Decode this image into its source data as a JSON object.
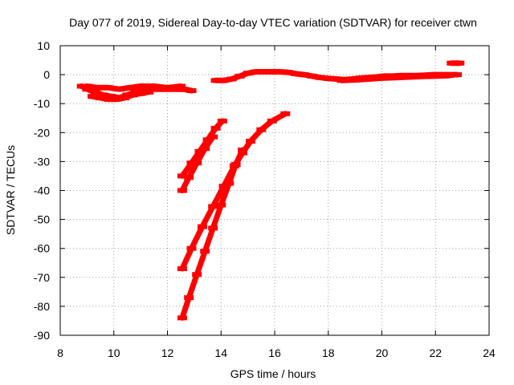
{
  "chart_data": {
    "type": "scatter",
    "title": "Day 077 of 2019, Sidereal Day-to-day VTEC variation (SDTVAR) for receiver ctwn",
    "xlabel": "GPS time / hours",
    "ylabel": "SDTVAR / TECUs",
    "xlim": [
      8,
      24
    ],
    "ylim": [
      -90,
      10
    ],
    "xticks": [
      8,
      10,
      12,
      14,
      16,
      18,
      20,
      22,
      24
    ],
    "yticks": [
      10,
      0,
      -10,
      -20,
      -30,
      -40,
      -50,
      -60,
      -70,
      -80,
      -90
    ],
    "grid": true,
    "legend": "none",
    "series_color": "#ff0000",
    "series": [
      {
        "points": [
          [
            8.8,
            -4
          ],
          [
            9.0,
            -5
          ],
          [
            9.3,
            -6
          ],
          [
            9.6,
            -7
          ],
          [
            9.9,
            -7.5
          ],
          [
            10.2,
            -8
          ],
          [
            10.5,
            -7
          ],
          [
            10.8,
            -6
          ],
          [
            11.1,
            -5.5
          ],
          [
            11.4,
            -5
          ],
          [
            11.7,
            -5
          ],
          [
            12.0,
            -5
          ],
          [
            12.3,
            -5
          ],
          [
            12.6,
            -5
          ],
          [
            12.9,
            -5.5
          ]
        ]
      },
      {
        "points": [
          [
            9.2,
            -7.5
          ],
          [
            9.5,
            -8
          ],
          [
            9.8,
            -8.5
          ],
          [
            10.1,
            -8.5
          ],
          [
            10.4,
            -8
          ],
          [
            10.7,
            -7
          ],
          [
            11.0,
            -6.5
          ],
          [
            11.3,
            -6
          ]
        ]
      },
      {
        "points": [
          [
            9.0,
            -4
          ],
          [
            9.4,
            -4.5
          ],
          [
            9.8,
            -4.5
          ],
          [
            10.2,
            -5
          ],
          [
            10.6,
            -4.5
          ],
          [
            11.0,
            -4
          ],
          [
            11.5,
            -4
          ],
          [
            12.0,
            -4.5
          ],
          [
            12.5,
            -4
          ]
        ]
      },
      {
        "points": [
          [
            13.8,
            -2
          ],
          [
            14.1,
            -2
          ],
          [
            14.4,
            -1.5
          ],
          [
            14.7,
            -0.5
          ],
          [
            15.0,
            0.5
          ],
          [
            15.3,
            1
          ],
          [
            15.6,
            1
          ],
          [
            15.9,
            1
          ],
          [
            16.2,
            1
          ],
          [
            16.5,
            0.8
          ],
          [
            16.8,
            0.3
          ],
          [
            17.1,
            0
          ],
          [
            17.4,
            -0.5
          ],
          [
            17.7,
            -1
          ],
          [
            18.0,
            -1.3
          ],
          [
            18.3,
            -1.5
          ],
          [
            18.6,
            -1.7
          ],
          [
            18.9,
            -1.5
          ],
          [
            19.2,
            -1.2
          ],
          [
            19.5,
            -1
          ],
          [
            19.8,
            -0.8
          ],
          [
            20.1,
            -0.5
          ],
          [
            20.4,
            -0.5
          ],
          [
            20.7,
            -0.3
          ],
          [
            21.0,
            -0.3
          ],
          [
            21.3,
            -0.3
          ],
          [
            21.6,
            -0.2
          ],
          [
            21.9,
            0
          ],
          [
            22.2,
            0
          ],
          [
            22.5,
            0
          ],
          [
            22.8,
            0
          ]
        ]
      },
      {
        "points": [
          [
            18.5,
            -2
          ],
          [
            19.0,
            -1.8
          ],
          [
            19.5,
            -1.5
          ],
          [
            20.0,
            -1.2
          ],
          [
            20.5,
            -1
          ],
          [
            21.0,
            -0.8
          ],
          [
            21.5,
            -0.6
          ],
          [
            22.0,
            -0.5
          ],
          [
            22.5,
            -0.3
          ]
        ]
      },
      {
        "points": [
          [
            22.6,
            4
          ],
          [
            22.7,
            4
          ],
          [
            22.8,
            4
          ],
          [
            22.9,
            4
          ]
        ]
      },
      {
        "points": [
          [
            12.55,
            -35
          ],
          [
            12.9,
            -30.5
          ],
          [
            13.2,
            -26.5
          ],
          [
            13.5,
            -22.5
          ],
          [
            13.8,
            -18.5
          ],
          [
            14.05,
            -16
          ]
        ]
      },
      {
        "points": [
          [
            12.55,
            -40
          ],
          [
            12.8,
            -35.5
          ],
          [
            13.1,
            -30.5
          ],
          [
            13.4,
            -25.5
          ],
          [
            13.7,
            -21.5
          ]
        ]
      },
      {
        "points": [
          [
            12.55,
            -67
          ],
          [
            12.9,
            -60
          ],
          [
            13.3,
            -52.5
          ],
          [
            13.7,
            -45.5
          ],
          [
            14.1,
            -38.5
          ],
          [
            14.5,
            -31.5
          ],
          [
            14.8,
            -27
          ],
          [
            15.1,
            -23
          ],
          [
            15.5,
            -19
          ],
          [
            15.9,
            -16
          ],
          [
            16.4,
            -13.5
          ]
        ]
      },
      {
        "points": [
          [
            12.55,
            -84
          ],
          [
            12.8,
            -77
          ],
          [
            13.1,
            -69
          ],
          [
            13.4,
            -61
          ],
          [
            13.7,
            -53
          ],
          [
            14.0,
            -45
          ],
          [
            14.3,
            -37.5
          ],
          [
            14.55,
            -31
          ],
          [
            14.8,
            -26
          ]
        ]
      }
    ]
  }
}
